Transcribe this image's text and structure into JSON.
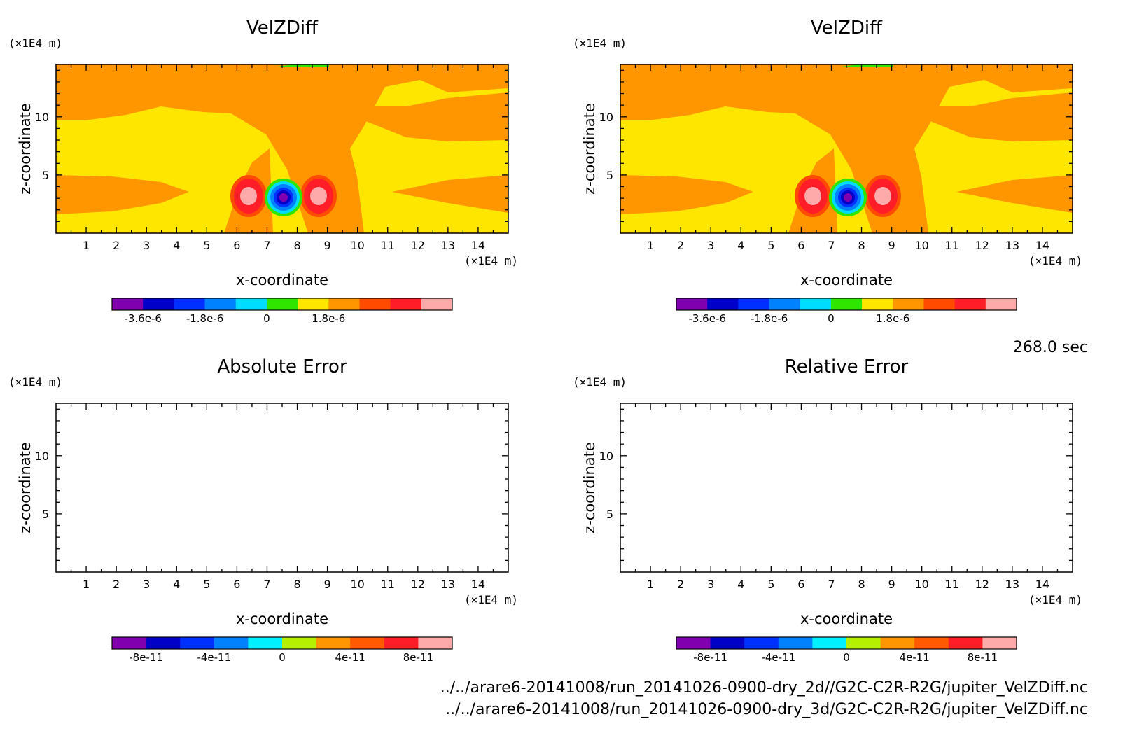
{
  "chart_data": [
    {
      "type": "heatmap",
      "title": "VelZDiff",
      "xlabel": "x-coordinate",
      "ylabel": "z-coordinate",
      "x_unit": "(×1E4 m)",
      "y_unit": "(×1E4 m)",
      "xlim": [
        0,
        15
      ],
      "ylim": [
        0,
        14.5
      ],
      "x_ticks": [
        "1",
        "2",
        "3",
        "4",
        "5",
        "6",
        "7",
        "8",
        "9",
        "10",
        "11",
        "12",
        "13",
        "14"
      ],
      "y_ticks": [
        "5",
        "10"
      ],
      "colorbar": {
        "colors": [
          "#8000b0",
          "#0000c8",
          "#0030ff",
          "#0082ff",
          "#00dcff",
          "#30e600",
          "#ffe600",
          "#ff9600",
          "#ff4b00",
          "#ff1e28",
          "#ffaaaa"
        ],
        "boundaries": [
          -4.5e-06,
          -3.6e-06,
          -2.7e-06,
          -1.8e-06,
          -9e-07,
          0,
          9e-07,
          1.8e-06,
          2.7e-06
        ],
        "tick_labels": [
          "-3.6e-6",
          "-1.8e-6",
          "0",
          "1.8e-6"
        ],
        "tick_values": [
          -3.6e-06,
          -1.8e-06,
          0,
          1.8e-06
        ]
      }
    },
    {
      "type": "heatmap",
      "title": "VelZDiff",
      "xlabel": "x-coordinate",
      "ylabel": "z-coordinate",
      "x_unit": "(×1E4 m)",
      "y_unit": "(×1E4 m)",
      "xlim": [
        0,
        15
      ],
      "ylim": [
        0,
        14.5
      ],
      "x_ticks": [
        "1",
        "2",
        "3",
        "4",
        "5",
        "6",
        "7",
        "8",
        "9",
        "10",
        "11",
        "12",
        "13",
        "14"
      ],
      "y_ticks": [
        "5",
        "10"
      ],
      "colorbar": {
        "colors": [
          "#8000b0",
          "#0000c8",
          "#0030ff",
          "#0082ff",
          "#00dcff",
          "#30e600",
          "#ffe600",
          "#ff9600",
          "#ff4b00",
          "#ff1e28",
          "#ffaaaa"
        ],
        "tick_labels": [
          "-3.6e-6",
          "-1.8e-6",
          "0",
          "1.8e-6"
        ],
        "tick_values": [
          -3.6e-06,
          -1.8e-06,
          0,
          1.8e-06
        ]
      }
    },
    {
      "type": "heatmap",
      "title": "Absolute Error",
      "xlabel": "x-coordinate",
      "ylabel": "z-coordinate",
      "x_unit": "(×1E4 m)",
      "y_unit": "(×1E4 m)",
      "xlim": [
        0,
        15
      ],
      "ylim": [
        0,
        14.5
      ],
      "x_ticks": [
        "1",
        "2",
        "3",
        "4",
        "5",
        "6",
        "7",
        "8",
        "9",
        "10",
        "11",
        "12",
        "13",
        "14"
      ],
      "y_ticks": [
        "5",
        "10"
      ],
      "empty": true,
      "colorbar": {
        "colors": [
          "#8000b0",
          "#0000c8",
          "#0030ff",
          "#0082ff",
          "#00f0ff",
          "#b4f000",
          "#ff9600",
          "#ff5a00",
          "#ff1e28",
          "#ffaaaa"
        ],
        "tick_labels": [
          "-8e-11",
          "-4e-11",
          "0",
          "4e-11",
          "8e-11"
        ],
        "tick_values": [
          -8e-11,
          -4e-11,
          0,
          4e-11,
          8e-11
        ]
      }
    },
    {
      "type": "heatmap",
      "title": "Relative Error",
      "xlabel": "x-coordinate",
      "ylabel": "z-coordinate",
      "x_unit": "(×1E4 m)",
      "y_unit": "(×1E4 m)",
      "xlim": [
        0,
        15
      ],
      "ylim": [
        0,
        14.5
      ],
      "x_ticks": [
        "1",
        "2",
        "3",
        "4",
        "5",
        "6",
        "7",
        "8",
        "9",
        "10",
        "11",
        "12",
        "13",
        "14"
      ],
      "y_ticks": [
        "5",
        "10"
      ],
      "empty": true,
      "colorbar": {
        "colors": [
          "#8000b0",
          "#0000c8",
          "#0030ff",
          "#0082ff",
          "#00f0ff",
          "#b4f000",
          "#ff9600",
          "#ff5a00",
          "#ff1e28",
          "#ffaaaa"
        ],
        "tick_labels": [
          "-8e-11",
          "-4e-11",
          "0",
          "4e-11",
          "8e-11"
        ],
        "tick_values": [
          -8e-11,
          -4e-11,
          0,
          4e-11,
          8e-11
        ]
      }
    }
  ],
  "time_label": "268.0 sec",
  "file_paths": [
    "../../arare6-20141008/run_20141026-0900-dry_2d//G2C-C2R-R2G/jupiter_VelZDiff.nc",
    "../../arare6-20141008/run_20141026-0900-dry_3d/G2C-C2R-R2G/jupiter_VelZDiff.nc"
  ],
  "colors": {
    "field_background": "#ffe600",
    "band_orange": "#ff9600"
  }
}
